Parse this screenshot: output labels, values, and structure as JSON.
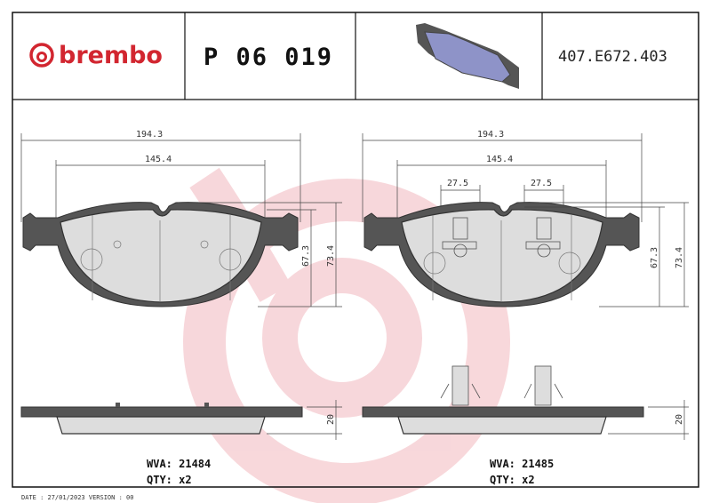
{
  "header": {
    "brand": "brembo",
    "part_number": "P 06 019",
    "reference": "407.E672.403"
  },
  "left_view": {
    "dim_total_width": "194.3",
    "dim_inner_width": "145.4",
    "dim_height_inner": "67.3",
    "dim_height_total": "73.4",
    "dim_thickness": "20",
    "wva": "WVA: 21484",
    "qty": "QTY: x2"
  },
  "right_view": {
    "dim_total_width": "194.3",
    "dim_inner_width": "145.4",
    "dim_sensor_left": "27.5",
    "dim_sensor_right": "27.5",
    "dim_height_inner": "67.3",
    "dim_height_total": "73.4",
    "dim_thickness": "20",
    "wva": "WVA: 21485",
    "qty": "QTY: x2"
  },
  "footer": {
    "date_version": "DATE : 27/01/2023 VERSION : 00"
  },
  "colors": {
    "brand_red": "#d22630",
    "watermark": "#f6d3d6",
    "pad_preview": "#8e93c8"
  }
}
